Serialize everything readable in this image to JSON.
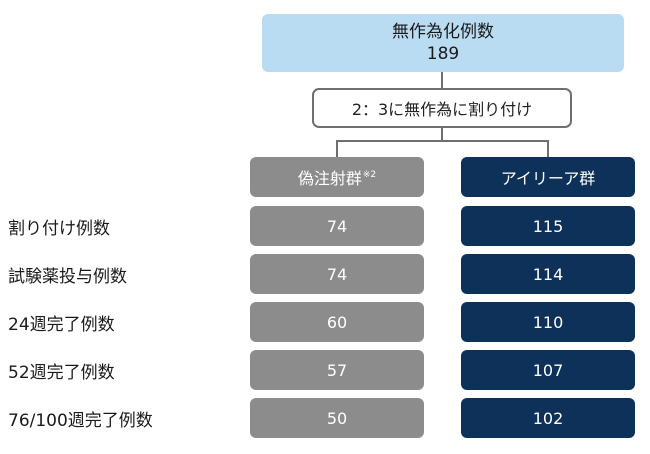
{
  "top": {
    "title": "無作為化例数",
    "count": "189"
  },
  "allocation_label": "2：3に無作為に割り付け",
  "groups": [
    {
      "name": "偽注射群",
      "note": "※2",
      "color": "#8c8c8c"
    },
    {
      "name": "アイリーア群",
      "note": "",
      "color": "#0d3158"
    }
  ],
  "rows": [
    {
      "label": "割り付け例数",
      "left": "74",
      "right": "115"
    },
    {
      "label": "試験薬投与例数",
      "left": "74",
      "right": "114"
    },
    {
      "label": "24週完了例数",
      "left": "60",
      "right": "110"
    },
    {
      "label": "52週完了例数",
      "left": "57",
      "right": "107"
    },
    {
      "label": "76/100週完了例数",
      "left": "50",
      "right": "102"
    }
  ]
}
